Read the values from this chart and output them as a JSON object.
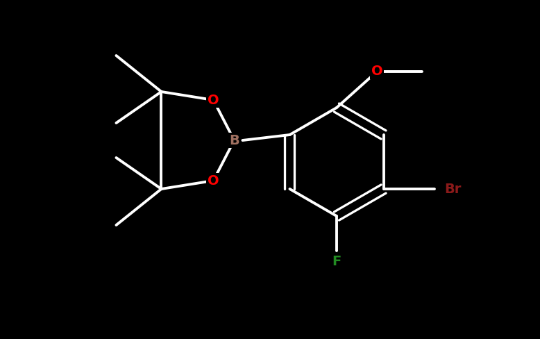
{
  "background_color": "#000000",
  "bond_color": "#ffffff",
  "bond_lw": 2.8,
  "colors": {
    "B": "#a07060",
    "O": "#ff0000",
    "F": "#228b22",
    "Br": "#8b1a1a",
    "C": "#ffffff"
  },
  "figsize": [
    7.78,
    4.88
  ],
  "dpi": 100,
  "xlim": [
    0,
    7.78
  ],
  "ylim": [
    0,
    4.88
  ]
}
